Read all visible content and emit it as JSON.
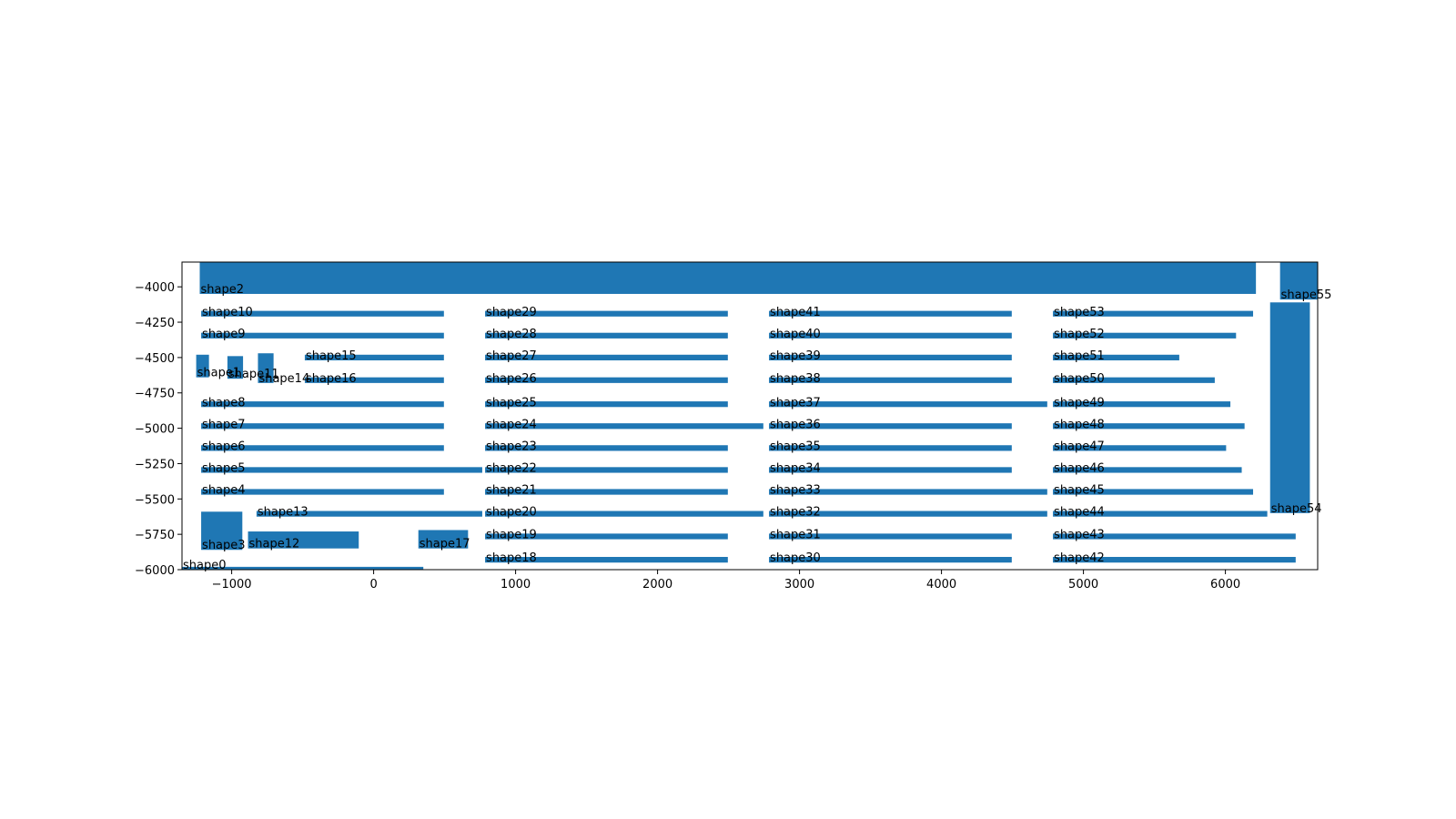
{
  "chart_data": {
    "type": "rectangles",
    "title": "",
    "xlabel": "",
    "ylabel": "",
    "xlim": [
      -1350,
      6650
    ],
    "ylim": [
      -6000,
      -3825
    ],
    "xticks": [
      -1000,
      0,
      1000,
      2000,
      3000,
      4000,
      5000,
      6000
    ],
    "yticks": [
      -4000,
      -4250,
      -4500,
      -4750,
      -5000,
      -5250,
      -5500,
      -5750,
      -6000
    ],
    "xtick_labels": [
      "−1000",
      "0",
      "1000",
      "2000",
      "3000",
      "4000",
      "5000",
      "6000"
    ],
    "ytick_labels": [
      "−4000",
      "−4250",
      "−4500",
      "−4750",
      "−5000",
      "−5250",
      "−5500",
      "−5750",
      "−6000"
    ],
    "grid": false,
    "bar_color": "#1f77b4",
    "shapes": [
      {
        "name": "shape0",
        "x0": -1350,
        "x1": 350,
        "y0": -6000,
        "y1": -5980
      },
      {
        "name": "shape1",
        "x0": -1250,
        "x1": -1160,
        "y0": -4640,
        "y1": -4480
      },
      {
        "name": "shape2",
        "x0": -1225,
        "x1": 6215,
        "y0": -4050,
        "y1": -3825
      },
      {
        "name": "shape3",
        "x0": -1215,
        "x1": -925,
        "y0": -5860,
        "y1": -5590
      },
      {
        "name": "shape4",
        "x0": -1215,
        "x1": 495,
        "y0": -5470,
        "y1": -5430
      },
      {
        "name": "shape5",
        "x0": -1215,
        "x1": 765,
        "y0": -5315,
        "y1": -5275
      },
      {
        "name": "shape6",
        "x0": -1215,
        "x1": 495,
        "y0": -5160,
        "y1": -5120
      },
      {
        "name": "shape7",
        "x0": -1215,
        "x1": 495,
        "y0": -5005,
        "y1": -4965
      },
      {
        "name": "shape8",
        "x0": -1215,
        "x1": 495,
        "y0": -4850,
        "y1": -4810
      },
      {
        "name": "shape9",
        "x0": -1215,
        "x1": 495,
        "y0": -4365,
        "y1": -4325
      },
      {
        "name": "shape10",
        "x0": -1215,
        "x1": 495,
        "y0": -4210,
        "y1": -4170
      },
      {
        "name": "shape11",
        "x0": -1030,
        "x1": -920,
        "y0": -4650,
        "y1": -4490
      },
      {
        "name": "shape12",
        "x0": -885,
        "x1": -105,
        "y0": -5850,
        "y1": -5730
      },
      {
        "name": "shape13",
        "x0": -825,
        "x1": 765,
        "y0": -5625,
        "y1": -5585
      },
      {
        "name": "shape14",
        "x0": -815,
        "x1": -705,
        "y0": -4680,
        "y1": -4470
      },
      {
        "name": "shape15",
        "x0": -485,
        "x1": 495,
        "y0": -4520,
        "y1": -4480
      },
      {
        "name": "shape16",
        "x0": -485,
        "x1": 495,
        "y0": -4680,
        "y1": -4640
      },
      {
        "name": "shape17",
        "x0": 315,
        "x1": 665,
        "y0": -5850,
        "y1": -5720
      },
      {
        "name": "shape18",
        "x0": 785,
        "x1": 2495,
        "y0": -5950,
        "y1": -5910
      },
      {
        "name": "shape19",
        "x0": 785,
        "x1": 2495,
        "y0": -5785,
        "y1": -5745
      },
      {
        "name": "shape20",
        "x0": 785,
        "x1": 2745,
        "y0": -5625,
        "y1": -5585
      },
      {
        "name": "shape21",
        "x0": 785,
        "x1": 2495,
        "y0": -5470,
        "y1": -5430
      },
      {
        "name": "shape22",
        "x0": 785,
        "x1": 2495,
        "y0": -5315,
        "y1": -5275
      },
      {
        "name": "shape23",
        "x0": 785,
        "x1": 2495,
        "y0": -5160,
        "y1": -5120
      },
      {
        "name": "shape24",
        "x0": 785,
        "x1": 2745,
        "y0": -5005,
        "y1": -4965
      },
      {
        "name": "shape25",
        "x0": 785,
        "x1": 2495,
        "y0": -4850,
        "y1": -4810
      },
      {
        "name": "shape26",
        "x0": 785,
        "x1": 2495,
        "y0": -4680,
        "y1": -4640
      },
      {
        "name": "shape27",
        "x0": 785,
        "x1": 2495,
        "y0": -4520,
        "y1": -4480
      },
      {
        "name": "shape28",
        "x0": 785,
        "x1": 2495,
        "y0": -4365,
        "y1": -4325
      },
      {
        "name": "shape29",
        "x0": 785,
        "x1": 2495,
        "y0": -4210,
        "y1": -4170
      },
      {
        "name": "shape30",
        "x0": 2785,
        "x1": 4495,
        "y0": -5950,
        "y1": -5910
      },
      {
        "name": "shape31",
        "x0": 2785,
        "x1": 4495,
        "y0": -5785,
        "y1": -5745
      },
      {
        "name": "shape32",
        "x0": 2785,
        "x1": 4745,
        "y0": -5625,
        "y1": -5585
      },
      {
        "name": "shape33",
        "x0": 2785,
        "x1": 4745,
        "y0": -5470,
        "y1": -5430
      },
      {
        "name": "shape34",
        "x0": 2785,
        "x1": 4495,
        "y0": -5315,
        "y1": -5275
      },
      {
        "name": "shape35",
        "x0": 2785,
        "x1": 4495,
        "y0": -5160,
        "y1": -5120
      },
      {
        "name": "shape36",
        "x0": 2785,
        "x1": 4495,
        "y0": -5005,
        "y1": -4965
      },
      {
        "name": "shape37",
        "x0": 2785,
        "x1": 4745,
        "y0": -4850,
        "y1": -4810
      },
      {
        "name": "shape38",
        "x0": 2785,
        "x1": 4495,
        "y0": -4680,
        "y1": -4640
      },
      {
        "name": "shape39",
        "x0": 2785,
        "x1": 4495,
        "y0": -4520,
        "y1": -4480
      },
      {
        "name": "shape40",
        "x0": 2785,
        "x1": 4495,
        "y0": -4365,
        "y1": -4325
      },
      {
        "name": "shape41",
        "x0": 2785,
        "x1": 4495,
        "y0": -4210,
        "y1": -4170
      },
      {
        "name": "shape42",
        "x0": 4785,
        "x1": 6495,
        "y0": -5950,
        "y1": -5910
      },
      {
        "name": "shape43",
        "x0": 4785,
        "x1": 6495,
        "y0": -5785,
        "y1": -5745
      },
      {
        "name": "shape44",
        "x0": 4785,
        "x1": 6295,
        "y0": -5625,
        "y1": -5585
      },
      {
        "name": "shape45",
        "x0": 4785,
        "x1": 6195,
        "y0": -5470,
        "y1": -5430
      },
      {
        "name": "shape46",
        "x0": 4785,
        "x1": 6115,
        "y0": -5315,
        "y1": -5275
      },
      {
        "name": "shape47",
        "x0": 4785,
        "x1": 6005,
        "y0": -5160,
        "y1": -5120
      },
      {
        "name": "shape48",
        "x0": 4785,
        "x1": 6135,
        "y0": -5005,
        "y1": -4965
      },
      {
        "name": "shape49",
        "x0": 4785,
        "x1": 6035,
        "y0": -4850,
        "y1": -4810
      },
      {
        "name": "shape50",
        "x0": 4785,
        "x1": 5925,
        "y0": -4680,
        "y1": -4640
      },
      {
        "name": "shape51",
        "x0": 4785,
        "x1": 5675,
        "y0": -4520,
        "y1": -4480
      },
      {
        "name": "shape52",
        "x0": 4785,
        "x1": 6075,
        "y0": -4365,
        "y1": -4325
      },
      {
        "name": "shape53",
        "x0": 4785,
        "x1": 6195,
        "y0": -4210,
        "y1": -4170
      },
      {
        "name": "shape54",
        "x0": 6315,
        "x1": 6595,
        "y0": -5600,
        "y1": -4110
      },
      {
        "name": "shape55",
        "x0": 6385,
        "x1": 6650,
        "y0": -4090,
        "y1": -3825
      }
    ]
  }
}
